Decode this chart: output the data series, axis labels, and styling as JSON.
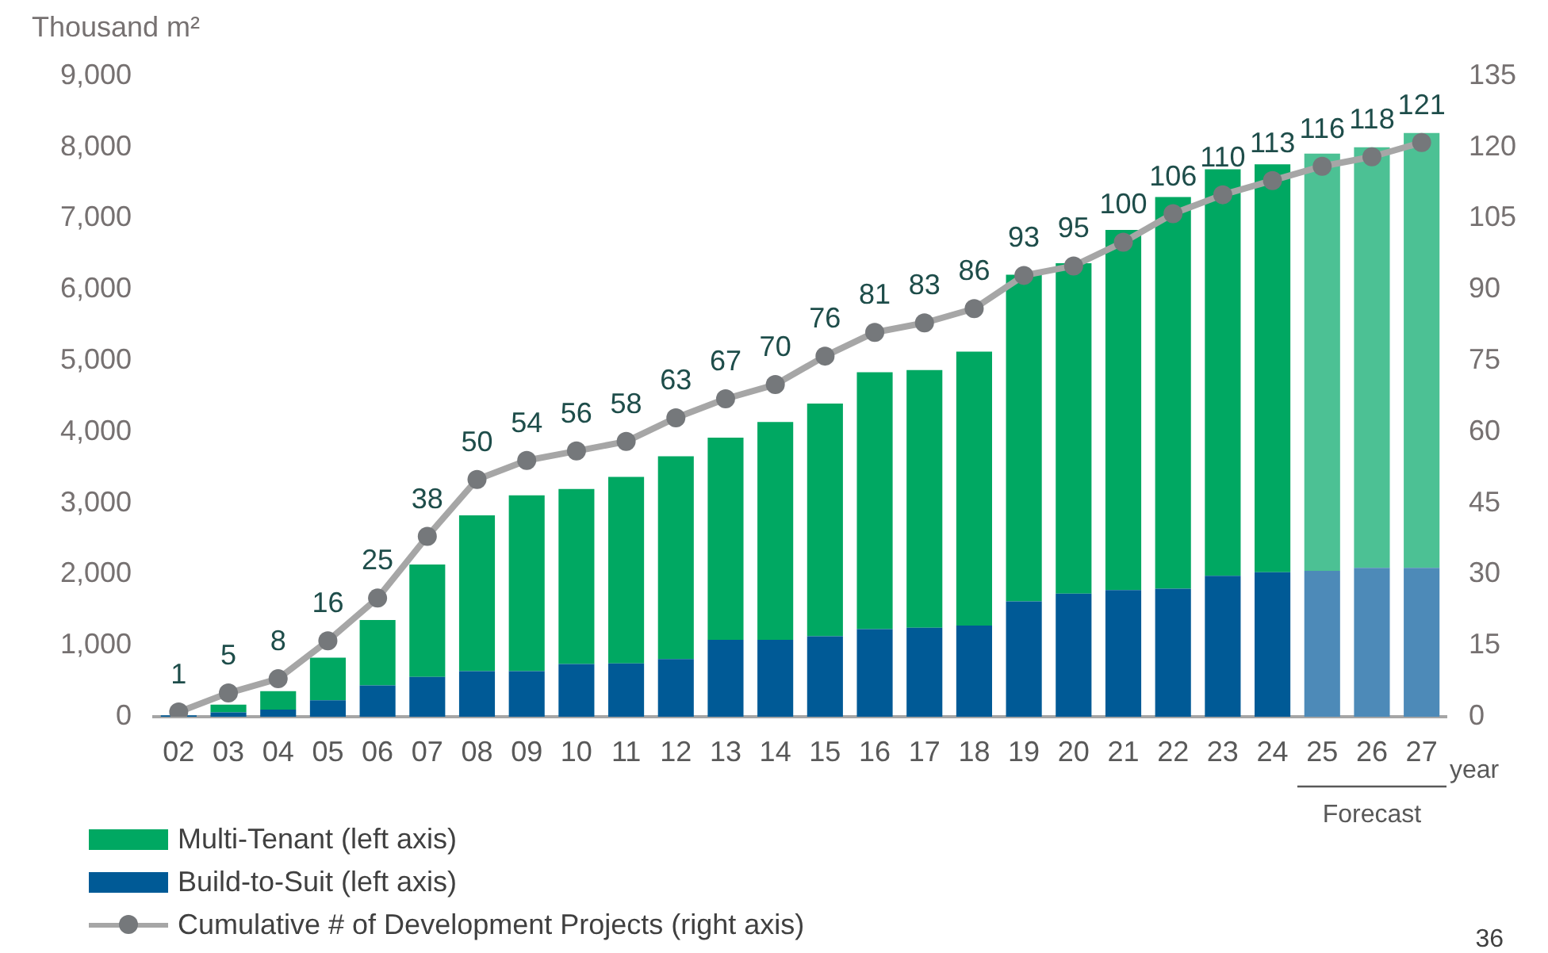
{
  "chart_data": {
    "type": "bar",
    "stacked": true,
    "ylabel": "Thousand m²",
    "xlabel": "year",
    "categories": [
      "02",
      "03",
      "04",
      "05",
      "06",
      "07",
      "08",
      "09",
      "10",
      "11",
      "12",
      "13",
      "14",
      "15",
      "16",
      "17",
      "18",
      "19",
      "20",
      "21",
      "22",
      "23",
      "24",
      "25",
      "26",
      "27"
    ],
    "series": [
      {
        "name": "Build-to-Suit (left axis)",
        "color": "#005a96",
        "colors": [
          "#005a96",
          "#005a96",
          "#005a96",
          "#005a96",
          "#005a96",
          "#005a96",
          "#005a96",
          "#005a96",
          "#005a96",
          "#005a96",
          "#005a96",
          "#005a96",
          "#005a96",
          "#005a96",
          "#005a96",
          "#005a96",
          "#005a96",
          "#005a96",
          "#005a96",
          "#005a96",
          "#005a96",
          "#005a96",
          "#005a96",
          "#4d8ab8",
          "#4d8ab8",
          "#4d8ab8"
        ],
        "values": [
          20,
          60,
          100,
          230,
          440,
          560,
          640,
          640,
          740,
          750,
          810,
          1080,
          1080,
          1130,
          1230,
          1250,
          1280,
          1620,
          1730,
          1780,
          1800,
          1980,
          2030,
          2050,
          2090,
          2090
        ]
      },
      {
        "name": "Multi-Tenant (left axis)",
        "color": "#00a862",
        "colors": [
          "#00a862",
          "#00a862",
          "#00a862",
          "#00a862",
          "#00a862",
          "#00a862",
          "#00a862",
          "#00a862",
          "#00a862",
          "#00a862",
          "#00a862",
          "#00a862",
          "#00a862",
          "#00a862",
          "#00a862",
          "#00a862",
          "#00a862",
          "#00a862",
          "#00a862",
          "#00a862",
          "#00a862",
          "#00a862",
          "#00a862",
          "#4cc194",
          "#4cc194",
          "#4cc194"
        ],
        "values": [
          0,
          110,
          260,
          600,
          920,
          1580,
          2190,
          2470,
          2460,
          2620,
          2850,
          2840,
          3060,
          3270,
          3610,
          3620,
          3850,
          4590,
          4640,
          5060,
          5500,
          5710,
          5730,
          5860,
          5910,
          6110
        ]
      },
      {
        "name": "Cumulative # of Development Projects (right axis)",
        "type": "line",
        "axis": "y2",
        "color": "#a6a6a6",
        "marker": "circle",
        "values": [
          1,
          5,
          8,
          16,
          25,
          38,
          50,
          54,
          56,
          58,
          63,
          67,
          70,
          76,
          81,
          83,
          86,
          93,
          95,
          100,
          106,
          110,
          113,
          116,
          118,
          121
        ],
        "value_labels": [
          "1",
          "5",
          "8",
          "16",
          "25",
          "38",
          "50",
          "54",
          "56",
          "58",
          "63",
          "67",
          "70",
          "76",
          "81",
          "83",
          "86",
          "93",
          "95",
          "100",
          "106",
          "110",
          "113",
          "116",
          "118",
          "121"
        ]
      }
    ],
    "ylim": [
      0,
      9000
    ],
    "yticks": [
      {
        "value": 0,
        "label": "0"
      },
      {
        "value": 1000,
        "label": "1,000"
      },
      {
        "value": 2000,
        "label": "2,000"
      },
      {
        "value": 3000,
        "label": "3,000"
      },
      {
        "value": 4000,
        "label": "4,000"
      },
      {
        "value": 5000,
        "label": "5,000"
      },
      {
        "value": 6000,
        "label": "6,000"
      },
      {
        "value": 7000,
        "label": "7,000"
      },
      {
        "value": 8000,
        "label": "8,000"
      },
      {
        "value": 9000,
        "label": "9,000"
      }
    ],
    "y2lim": [
      0,
      135
    ],
    "y2ticks": [
      0,
      15,
      30,
      45,
      60,
      75,
      90,
      105,
      120,
      135
    ],
    "grid": false,
    "legend": "bottom left",
    "annotations": [
      "Forecast",
      "36"
    ]
  }
}
